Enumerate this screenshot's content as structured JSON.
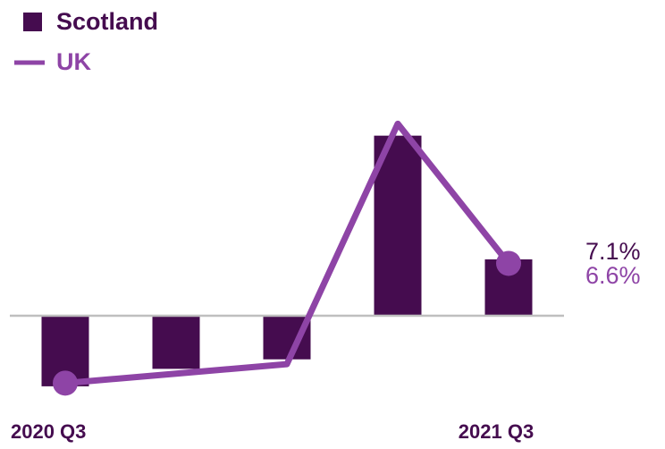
{
  "chart_data": {
    "type": "bar",
    "categories": [
      "2020 Q3",
      null,
      null,
      null,
      "2021 Q3"
    ],
    "series": [
      {
        "name": "Scotland",
        "type": "bar",
        "color": "#450c4f",
        "values": [
          -8.9,
          -6.7,
          -5.5,
          22.7,
          7.1
        ],
        "value_labels": [
          null,
          null,
          null,
          null,
          "7.1%"
        ]
      },
      {
        "name": "UK",
        "type": "line",
        "color": "#8e44a6",
        "values": [
          -8.5,
          -7.3,
          -6.1,
          24.2,
          6.6
        ],
        "value_labels": [
          null,
          null,
          null,
          null,
          "6.6%"
        ]
      }
    ],
    "ylim": [
      -12,
      26
    ],
    "legend": "top-left"
  }
}
